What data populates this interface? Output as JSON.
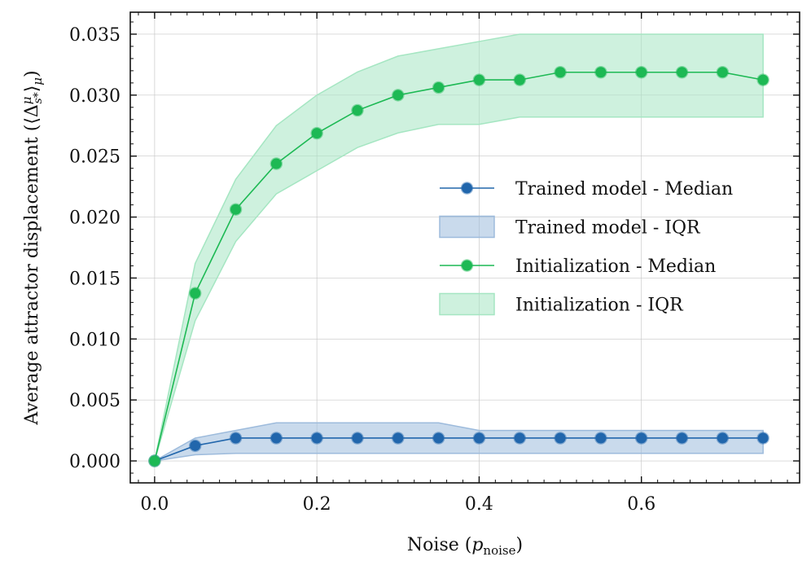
{
  "chart_data": {
    "type": "line",
    "xlabel": "Noise (p_noise)",
    "xlabel_main": "Noise (",
    "xlabel_var": "p",
    "xlabel_sub": "noise",
    "xlabel_close": ")",
    "ylabel": "Average attractor displacement (⟨Δ^μ_{s*}⟩_μ)",
    "ylabel_main": "Average attractor displacement (⟨Δ",
    "ylabel_sup": "μ",
    "ylabel_sub": "s*",
    "ylabel_close": "⟩",
    "ylabel_sub2": "μ",
    "ylabel_end": ")",
    "xlim": [
      -0.03,
      0.795
    ],
    "ylim": [
      -0.0018,
      0.0368
    ],
    "xticks": [
      "0.0",
      "0.2",
      "0.4",
      "0.6"
    ],
    "xtick_values": [
      0.0,
      0.2,
      0.4,
      0.6
    ],
    "yticks": [
      "0.000",
      "0.005",
      "0.010",
      "0.015",
      "0.020",
      "0.025",
      "0.030",
      "0.035"
    ],
    "ytick_values": [
      0.0,
      0.005,
      0.01,
      0.015,
      0.02,
      0.025,
      0.03,
      0.035
    ],
    "grid": true,
    "legend_position": "right-center",
    "x": [
      0.0,
      0.05,
      0.1,
      0.15,
      0.2,
      0.25,
      0.3,
      0.35,
      0.4,
      0.45,
      0.5,
      0.55,
      0.6,
      0.65,
      0.7,
      0.75
    ],
    "series": [
      {
        "name": "Trained model - Median",
        "band_name": "Trained model - IQR",
        "color": "#2166ac",
        "fill": "#9dbbdc",
        "values": [
          0.0,
          0.00125,
          0.001875,
          0.001875,
          0.001875,
          0.001875,
          0.001875,
          0.001875,
          0.001875,
          0.001875,
          0.001875,
          0.001875,
          0.001875,
          0.001875,
          0.001875,
          0.001875
        ],
        "lower": [
          0.0,
          0.0005,
          0.000625,
          0.000625,
          0.000625,
          0.000625,
          0.000625,
          0.000625,
          0.000625,
          0.000625,
          0.000625,
          0.000625,
          0.000625,
          0.000625,
          0.000625,
          0.000625
        ],
        "upper": [
          0.0,
          0.001875,
          0.0025,
          0.003125,
          0.003125,
          0.003125,
          0.003125,
          0.003125,
          0.0025,
          0.0025,
          0.0025,
          0.0025,
          0.0025,
          0.0025,
          0.0025,
          0.0025
        ]
      },
      {
        "name": "Initialization - Median",
        "band_name": "Initialization - IQR",
        "color": "#1db954",
        "fill": "#a5e6c2",
        "values": [
          0.0,
          0.01375,
          0.020625,
          0.024375,
          0.026875,
          0.02875,
          0.03,
          0.030625,
          0.03125,
          0.03125,
          0.031875,
          0.031875,
          0.031875,
          0.031875,
          0.031875,
          0.03125
        ],
        "lower": [
          0.0,
          0.0115,
          0.018,
          0.0219,
          0.0238,
          0.0257,
          0.0269,
          0.0276,
          0.0276,
          0.0282,
          0.0282,
          0.0282,
          0.0282,
          0.0282,
          0.0282,
          0.0282
        ],
        "upper": [
          0.0,
          0.0162,
          0.0231,
          0.0275,
          0.03,
          0.0319,
          0.0332,
          0.0338,
          0.0344,
          0.035,
          0.035,
          0.035,
          0.035,
          0.035,
          0.035,
          0.035
        ]
      }
    ]
  }
}
